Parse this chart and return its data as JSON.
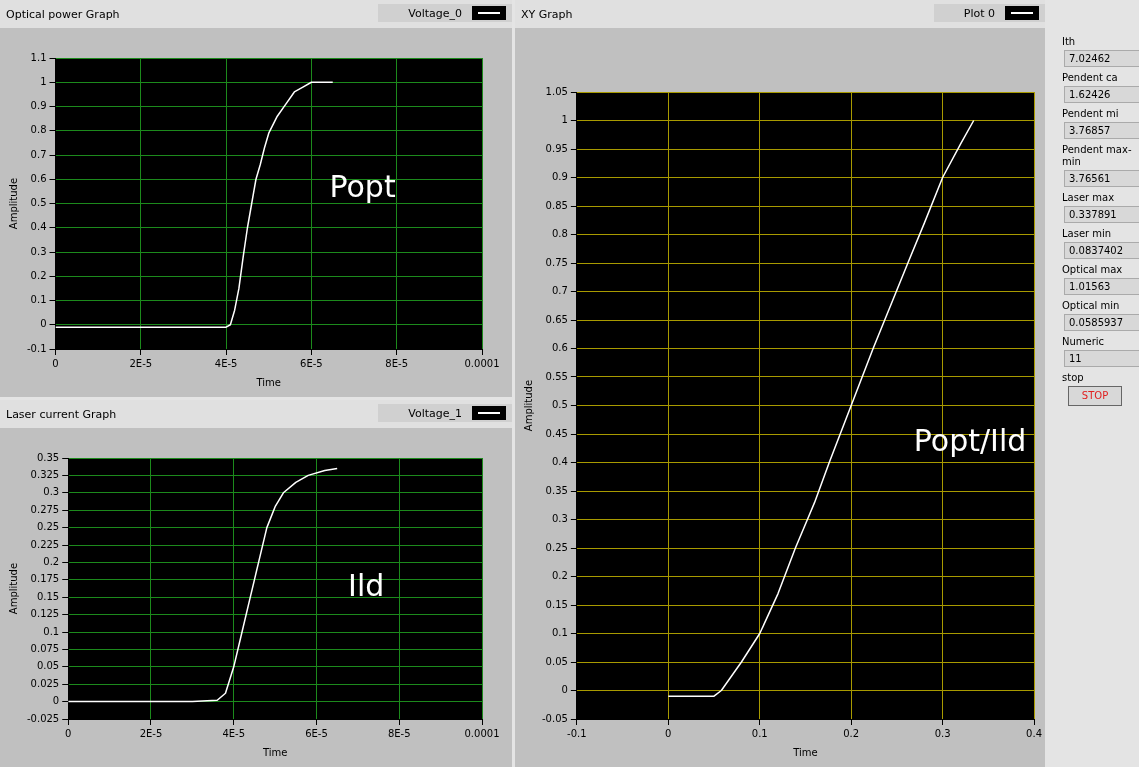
{
  "chart_data": [
    {
      "type": "line",
      "title": "Optical power Graph",
      "xlabel": "Time",
      "ylabel": "Amplitude",
      "annotations": [
        "Popt"
      ],
      "legend": "top right",
      "grid": true,
      "marker": "none",
      "x": [
        0,
        1e-05,
        2e-05,
        3e-05,
        4e-05,
        4.1e-05,
        4.2e-05,
        4.3e-05,
        4.4e-05,
        4.5e-05,
        4.6e-05,
        4.7e-05,
        4.8e-05,
        4.9e-05,
        5e-05,
        5.2e-05,
        5.4e-05,
        5.6e-05,
        5.8e-05,
        6e-05,
        6.5e-05
      ],
      "series": [
        {
          "name": "Voltage_0",
          "color": "#ffffff",
          "values": [
            -0.01,
            -0.01,
            -0.01,
            -0.01,
            -0.01,
            0.0,
            0.06,
            0.15,
            0.28,
            0.4,
            0.5,
            0.6,
            0.66,
            0.73,
            0.79,
            0.86,
            0.91,
            0.96,
            0.98,
            1.0,
            1.0
          ]
        }
      ],
      "xlim": [
        0,
        0.0001
      ],
      "xticks": [
        0,
        {
          "value": 2e-05,
          "label": "2E-5"
        },
        {
          "value": 4e-05,
          "label": "4E-5"
        },
        {
          "value": 6e-05,
          "label": "6E-5"
        },
        {
          "value": 8e-05,
          "label": "8E-5"
        },
        0.0001
      ],
      "ylim": [
        -0.1,
        1.1
      ],
      "yticks": [
        -0.1,
        0,
        0.1,
        0.2,
        0.3,
        0.4,
        0.5,
        0.6,
        0.7,
        0.8,
        0.9,
        1,
        1.1
      ]
    },
    {
      "type": "line",
      "title": "Laser current Graph",
      "xlabel": "Time",
      "ylabel": "Amplitude",
      "annotations": [
        "Ild"
      ],
      "legend": "top right",
      "grid": true,
      "marker": "none",
      "x": [
        0,
        1e-05,
        2e-05,
        3e-05,
        3.6e-05,
        3.8e-05,
        4e-05,
        4.2e-05,
        4.4e-05,
        4.6e-05,
        4.8e-05,
        5e-05,
        5.2e-05,
        5.5e-05,
        5.8e-05,
        6.2e-05,
        6.5e-05
      ],
      "series": [
        {
          "name": "Voltage_1",
          "color": "#ffffff",
          "values": [
            0,
            0,
            0,
            0,
            0.002,
            0.012,
            0.05,
            0.1,
            0.15,
            0.2,
            0.25,
            0.28,
            0.3,
            0.315,
            0.325,
            0.332,
            0.335
          ]
        }
      ],
      "xlim": [
        0,
        0.0001
      ],
      "xticks": [
        0,
        {
          "value": 2e-05,
          "label": "2E-5"
        },
        {
          "value": 4e-05,
          "label": "4E-5"
        },
        {
          "value": 6e-05,
          "label": "6E-5"
        },
        {
          "value": 8e-05,
          "label": "8E-5"
        },
        0.0001
      ],
      "ylim": [
        -0.025,
        0.35
      ],
      "yticks": [
        -0.025,
        0,
        0.025,
        0.05,
        0.075,
        0.1,
        0.125,
        0.15,
        0.175,
        0.2,
        0.225,
        0.25,
        0.275,
        0.3,
        0.325,
        0.35
      ]
    },
    {
      "type": "line",
      "title": "XY Graph",
      "xlabel": "Time",
      "ylabel": "Amplitude",
      "annotations": [
        "Popt/Ild"
      ],
      "legend": "top right",
      "grid": true,
      "marker": "none",
      "x": [
        0,
        0.02,
        0.05,
        0.058,
        0.08,
        0.1,
        0.12,
        0.139,
        0.16,
        0.176,
        0.2,
        0.224,
        0.262,
        0.28,
        0.3,
        0.32,
        0.334
      ],
      "series": [
        {
          "name": "Plot 0",
          "color": "#ffffff",
          "values": [
            -0.01,
            -0.01,
            -0.01,
            0,
            0.05,
            0.1,
            0.17,
            0.25,
            0.33,
            0.4,
            0.5,
            0.6,
            0.75,
            0.82,
            0.9,
            0.96,
            1.0
          ]
        }
      ],
      "xlim": [
        -0.1,
        0.4
      ],
      "xticks": [
        -0.1,
        0,
        0.1,
        0.2,
        0.3,
        0.4
      ],
      "ylim": [
        -0.05,
        1.05
      ],
      "yticks": [
        -0.05,
        0,
        0.05,
        0.1,
        0.15,
        0.2,
        0.25,
        0.3,
        0.35,
        0.4,
        0.45,
        0.5,
        0.55,
        0.6,
        0.65,
        0.7,
        0.75,
        0.8,
        0.85,
        0.9,
        0.95,
        1,
        1.05
      ]
    },
    {
      "type": "other",
      "annotations": [
        "Ith",
        "7.02462",
        "Pendent ca",
        "1.62426",
        "Pendent mi",
        "3.76857",
        "Pendent max-min",
        "3.76561",
        "Laser max",
        "0.337891",
        "Laser min",
        "0.0837402",
        "Optical max",
        "1.01563",
        "Optical min",
        "0.0585937",
        "Numeric",
        "11",
        "stop",
        "STOP"
      ]
    }
  ]
}
